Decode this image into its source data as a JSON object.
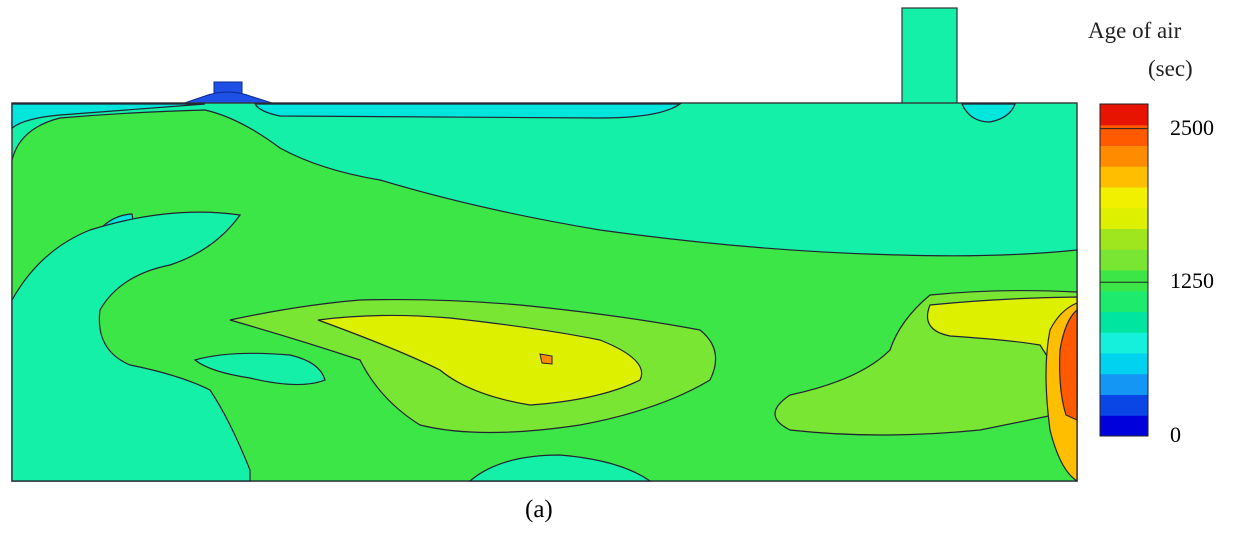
{
  "chart_data": {
    "type": "heatmap",
    "title": "",
    "xlabel": "",
    "ylabel": "",
    "caption": "(a)",
    "colorbar": {
      "title_lines": [
        "Age of air",
        "(sec)"
      ],
      "range": [
        0,
        2700
      ],
      "tick_labels": [
        "2500",
        "1250",
        "0"
      ],
      "tick_values": [
        2500,
        1250,
        0
      ],
      "colors": [
        "#0000dc",
        "#0a46e6",
        "#1496f5",
        "#00d2f0",
        "#14f0dc",
        "#00e6a0",
        "#1eeb6e",
        "#3ce646",
        "#78e632",
        "#a0e61e",
        "#dcf000",
        "#f0f000",
        "#ffbe00",
        "#ff8c00",
        "#ff5a00",
        "#e61400"
      ]
    },
    "field_levels_sec": {
      "background": 1100,
      "top_band_near_ceiling": 950,
      "ceiling_pockets": 750,
      "left_pocket": 750,
      "left_lower_pocket": 950,
      "main_plume": 1300,
      "core_plume": 1600,
      "hot_core": 1850,
      "hot_spot": 2300,
      "right_wall_core": 2550,
      "right_wall_region": 1750
    }
  }
}
